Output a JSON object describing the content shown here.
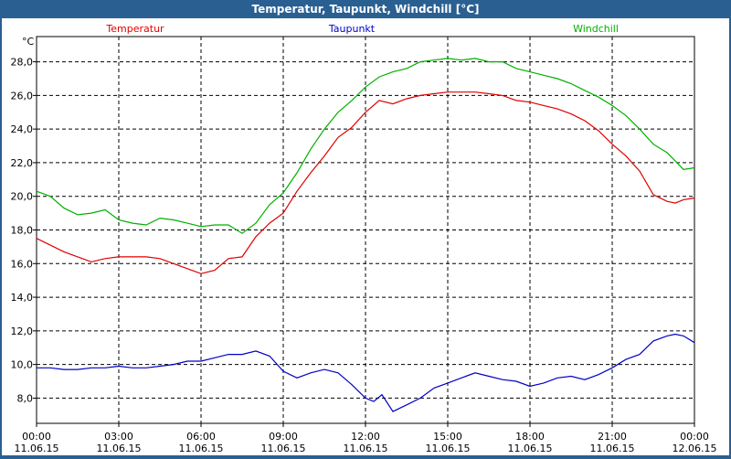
{
  "window": {
    "title": "Temperatur, Taupunkt, Windchill [°C]"
  },
  "colors": {
    "frame": "#2a5f91",
    "Temperatur": "#e00000",
    "Taupunkt": "#0000c8",
    "Windchill": "#00b000"
  },
  "chart_data": {
    "type": "line",
    "title": "Temperatur, Taupunkt, Windchill [°C]",
    "ylabel": "°C",
    "xlabel": "",
    "ylim": [
      6.5,
      29.5
    ],
    "yticks": [
      "8,0",
      "10,0",
      "12,0",
      "14,0",
      "16,0",
      "18,0",
      "20,0",
      "22,0",
      "24,0",
      "26,0",
      "28,0"
    ],
    "xlim": [
      0,
      24
    ],
    "xticks": [
      {
        "time": "00:00",
        "date": "11.06.15"
      },
      {
        "time": "03:00",
        "date": "11.06.15"
      },
      {
        "time": "06:00",
        "date": "11.06.15"
      },
      {
        "time": "09:00",
        "date": "11.06.15"
      },
      {
        "time": "12:00",
        "date": "11.06.15"
      },
      {
        "time": "15:00",
        "date": "11.06.15"
      },
      {
        "time": "18:00",
        "date": "11.06.15"
      },
      {
        "time": "21:00",
        "date": "11.06.15"
      },
      {
        "time": "00:00",
        "date": "12.06.15"
      }
    ],
    "grid": true,
    "legend_placement": "top",
    "series": [
      {
        "name": "Temperatur",
        "color": "#e00000",
        "x": [
          0,
          0.5,
          1,
          1.5,
          2,
          2.5,
          3,
          3.5,
          4,
          4.5,
          5,
          5.5,
          6,
          6.5,
          7,
          7.5,
          8,
          8.5,
          9,
          9.5,
          10,
          10.5,
          11,
          11.5,
          12,
          12.5,
          13,
          13.5,
          14,
          14.5,
          15,
          15.5,
          16,
          16.5,
          17,
          17.5,
          18,
          18.5,
          19,
          19.5,
          20,
          20.5,
          21,
          21.5,
          22,
          22.5,
          23,
          23.3,
          23.6,
          24
        ],
        "y": [
          17.5,
          17.1,
          16.7,
          16.4,
          16.1,
          16.3,
          16.4,
          16.4,
          16.4,
          16.3,
          16.0,
          15.7,
          15.4,
          15.6,
          16.3,
          16.4,
          17.6,
          18.4,
          19.0,
          20.3,
          21.4,
          22.4,
          23.5,
          24.1,
          25.0,
          25.7,
          25.5,
          25.8,
          26.0,
          26.1,
          26.2,
          26.2,
          26.2,
          26.1,
          26.0,
          25.7,
          25.6,
          25.4,
          25.2,
          24.9,
          24.5,
          23.9,
          23.1,
          22.4,
          21.5,
          20.1,
          19.7,
          19.6,
          19.8,
          19.9
        ]
      },
      {
        "name": "Taupunkt",
        "color": "#0000c8",
        "x": [
          0,
          0.5,
          1,
          1.5,
          2,
          2.5,
          3,
          3.5,
          4,
          4.5,
          5,
          5.5,
          6,
          6.5,
          7,
          7.5,
          8,
          8.5,
          9,
          9.5,
          10,
          10.5,
          11,
          11.5,
          12,
          12.3,
          12.6,
          13,
          13.5,
          14,
          14.5,
          15,
          15.5,
          16,
          16.5,
          17,
          17.5,
          18,
          18.5,
          19,
          19.5,
          20,
          20.5,
          21,
          21.5,
          22,
          22.5,
          23,
          23.3,
          23.6,
          24
        ],
        "y": [
          9.8,
          9.8,
          9.7,
          9.7,
          9.8,
          9.8,
          9.9,
          9.8,
          9.8,
          9.9,
          10.0,
          10.2,
          10.2,
          10.4,
          10.6,
          10.6,
          10.8,
          10.5,
          9.6,
          9.2,
          9.5,
          9.7,
          9.5,
          8.8,
          8.0,
          7.8,
          8.2,
          7.2,
          7.6,
          8.0,
          8.6,
          8.9,
          9.2,
          9.5,
          9.3,
          9.1,
          9.0,
          8.7,
          8.9,
          9.2,
          9.3,
          9.1,
          9.4,
          9.8,
          10.3,
          10.6,
          11.4,
          11.7,
          11.8,
          11.7,
          11.3
        ]
      },
      {
        "name": "Windchill",
        "color": "#00b000",
        "x": [
          0,
          0.5,
          1,
          1.5,
          2,
          2.5,
          3,
          3.5,
          4,
          4.5,
          5,
          5.5,
          6,
          6.5,
          7,
          7.5,
          8,
          8.5,
          9,
          9.5,
          10,
          10.5,
          11,
          11.5,
          12,
          12.5,
          13,
          13.5,
          14,
          14.5,
          15,
          15.5,
          16,
          16.5,
          17,
          17.5,
          18,
          18.5,
          19,
          19.5,
          20,
          20.5,
          21,
          21.5,
          22,
          22.5,
          23,
          23.3,
          23.6,
          24
        ],
        "y": [
          20.3,
          20.0,
          19.3,
          18.9,
          19.0,
          19.2,
          18.6,
          18.4,
          18.3,
          18.7,
          18.6,
          18.4,
          18.2,
          18.3,
          18.3,
          17.8,
          18.4,
          19.5,
          20.2,
          21.4,
          22.8,
          24.0,
          25.0,
          25.7,
          26.5,
          27.1,
          27.4,
          27.6,
          28.0,
          28.1,
          28.2,
          28.1,
          28.2,
          28.0,
          28.0,
          27.6,
          27.4,
          27.2,
          27.0,
          26.7,
          26.3,
          25.9,
          25.4,
          24.8,
          24.0,
          23.1,
          22.6,
          22.1,
          21.6,
          21.7
        ]
      }
    ]
  }
}
